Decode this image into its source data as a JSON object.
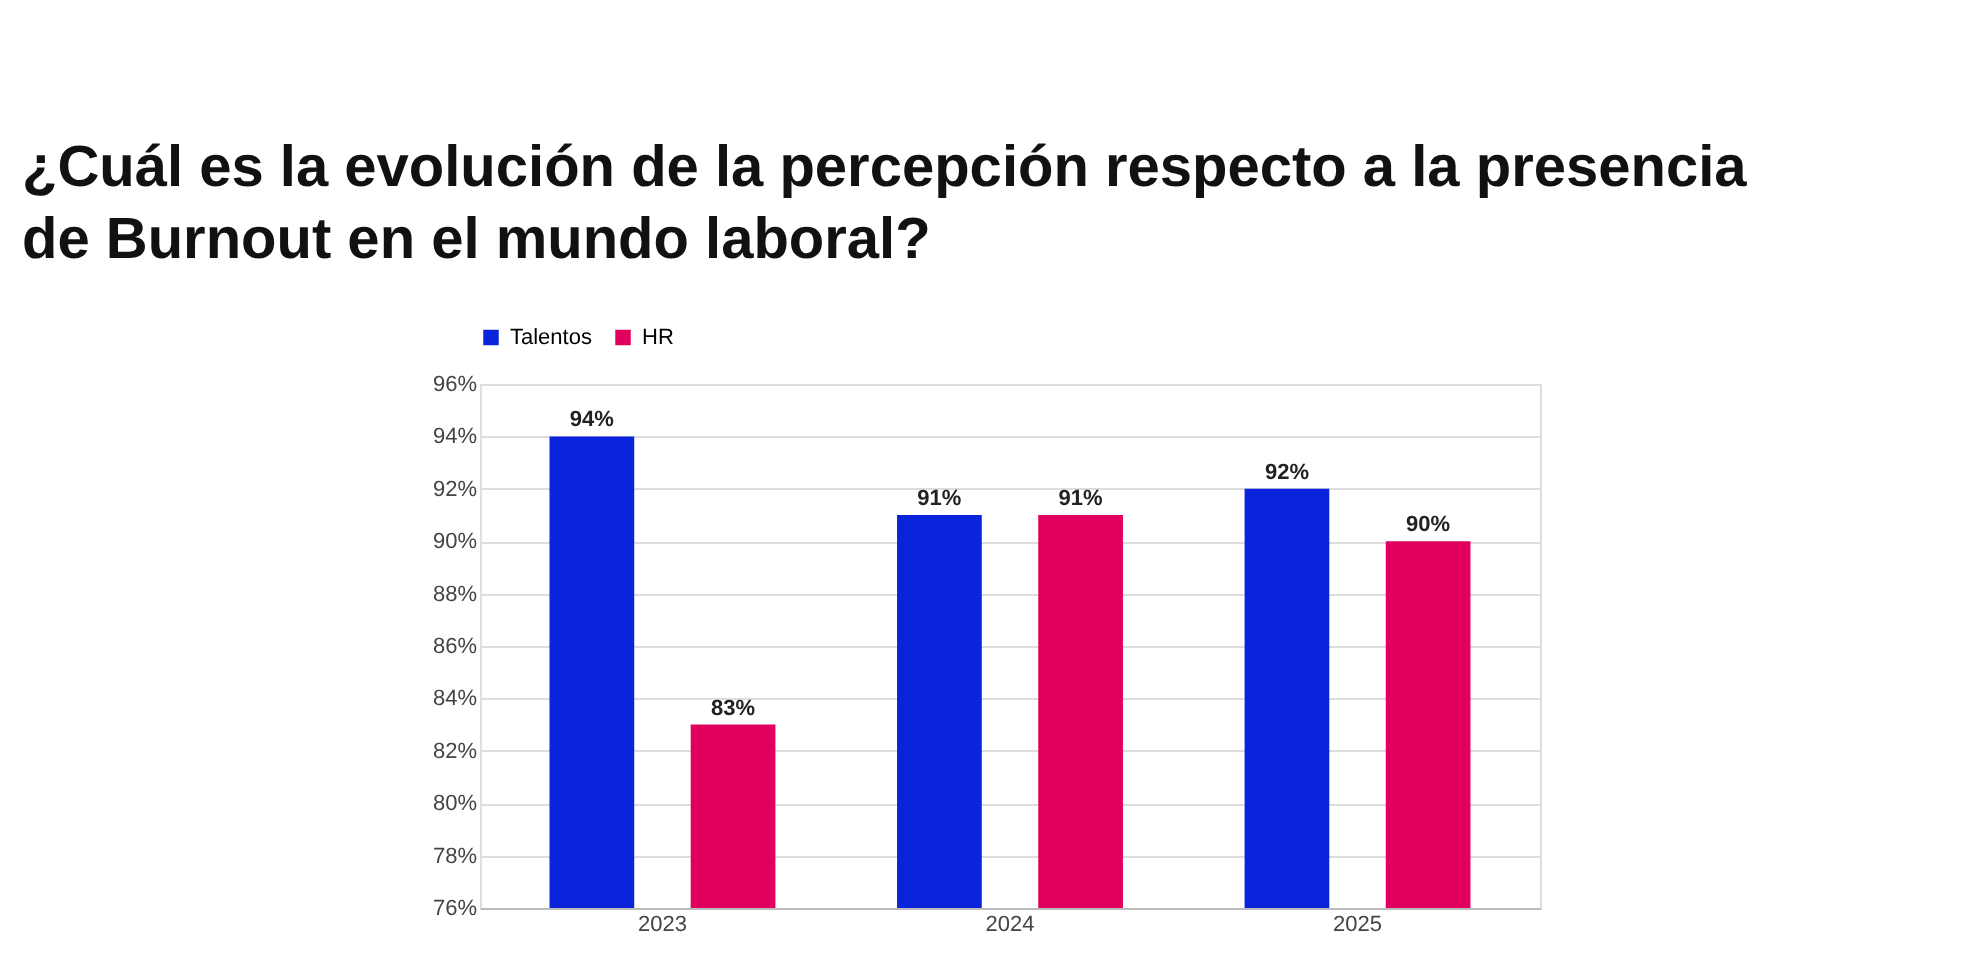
{
  "chart_data": {
    "type": "bar",
    "title": [
      "¿Cuál es la evolución de la percepción respecto a la presencia",
      "de Burnout en el mundo laboral?"
    ],
    "categories": [
      "2023",
      "2024",
      "2025"
    ],
    "series": [
      {
        "name": "Talentos",
        "color": "#0a24dc",
        "values": [
          94,
          91,
          92
        ],
        "value_labels": [
          "94%",
          "91%",
          "92%"
        ]
      },
      {
        "name": "HR",
        "color": "#e2005e",
        "values": [
          83,
          91,
          90
        ],
        "value_labels": [
          "83%",
          "91%",
          "90%"
        ]
      }
    ],
    "ylim": [
      76,
      96
    ],
    "yticks": [
      {
        "value": 76,
        "label": "76%"
      },
      {
        "value": 78,
        "label": "78%"
      },
      {
        "value": 80,
        "label": "80%"
      },
      {
        "value": 82,
        "label": "82%"
      },
      {
        "value": 84,
        "label": "84%"
      },
      {
        "value": 86,
        "label": "86%"
      },
      {
        "value": 88,
        "label": "88%"
      },
      {
        "value": 90,
        "label": "90%"
      },
      {
        "value": 92,
        "label": "92%"
      },
      {
        "value": 94,
        "label": "94%"
      },
      {
        "value": 96,
        "label": "96%"
      }
    ],
    "grid": "y",
    "legend": "top"
  }
}
